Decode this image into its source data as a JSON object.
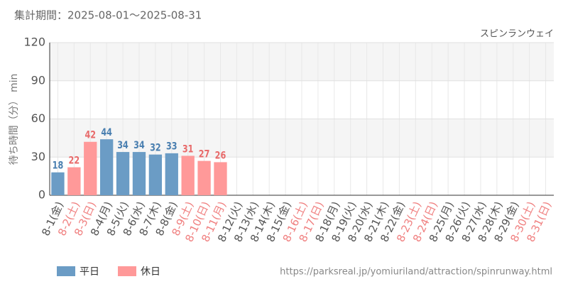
{
  "chart_data": {
    "type": "bar",
    "subtitle": "集計期間：2025-08-01～2025-08-31",
    "title": "スピンランウェイ",
    "y_label": "待ち時間（分） min",
    "source": "https://parksreal.jp/yomiuriland/attraction/spinrunway.html",
    "categories": [
      "8-1(金)",
      "8-2(土)",
      "8-3(日)",
      "8-4(月)",
      "8-5(火)",
      "8-6(水)",
      "8-7(木)",
      "8-8(金)",
      "8-9(土)",
      "8-10(日)",
      "8-11(月)",
      "8-12(火)",
      "8-13(水)",
      "8-14(木)",
      "8-15(金)",
      "8-16(土)",
      "8-17(日)",
      "8-18(月)",
      "8-19(火)",
      "8-20(水)",
      "8-21(木)",
      "8-22(金)",
      "8-23(土)",
      "8-24(日)",
      "8-25(月)",
      "8-26(火)",
      "8-27(水)",
      "8-28(木)",
      "8-29(金)",
      "8-30(土)",
      "8-31(日)"
    ],
    "category_colors": [
      "#555555",
      "#f08080",
      "#f08080",
      "#555555",
      "#555555",
      "#555555",
      "#555555",
      "#555555",
      "#f08080",
      "#f08080",
      "#f08080",
      "#555555",
      "#555555",
      "#555555",
      "#555555",
      "#f08080",
      "#f08080",
      "#555555",
      "#555555",
      "#555555",
      "#555555",
      "#555555",
      "#f08080",
      "#f08080",
      "#555555",
      "#555555",
      "#555555",
      "#555555",
      "#555555",
      "#f08080",
      "#f08080"
    ],
    "series": [
      {
        "name": "平日",
        "color": "#6b9cc5",
        "label_color": "#4a7fb0",
        "values": [
          18,
          null,
          null,
          44,
          34,
          34,
          32,
          33,
          null,
          null,
          null,
          null,
          null,
          null,
          null,
          null,
          null,
          null,
          null,
          null,
          null,
          null,
          null,
          null,
          null,
          null,
          null,
          null,
          null,
          null,
          null
        ]
      },
      {
        "name": "休日",
        "color": "#ff9999",
        "label_color": "#e86a6a",
        "values": [
          null,
          22,
          42,
          null,
          null,
          null,
          null,
          null,
          31,
          27,
          26,
          null,
          null,
          null,
          null,
          null,
          null,
          null,
          null,
          null,
          null,
          null,
          null,
          null,
          null,
          null,
          null,
          null,
          null,
          null,
          null
        ]
      }
    ],
    "ylim": [
      0,
      120
    ],
    "yticks": [
      0,
      30,
      60,
      90,
      120
    ],
    "grid": true
  }
}
